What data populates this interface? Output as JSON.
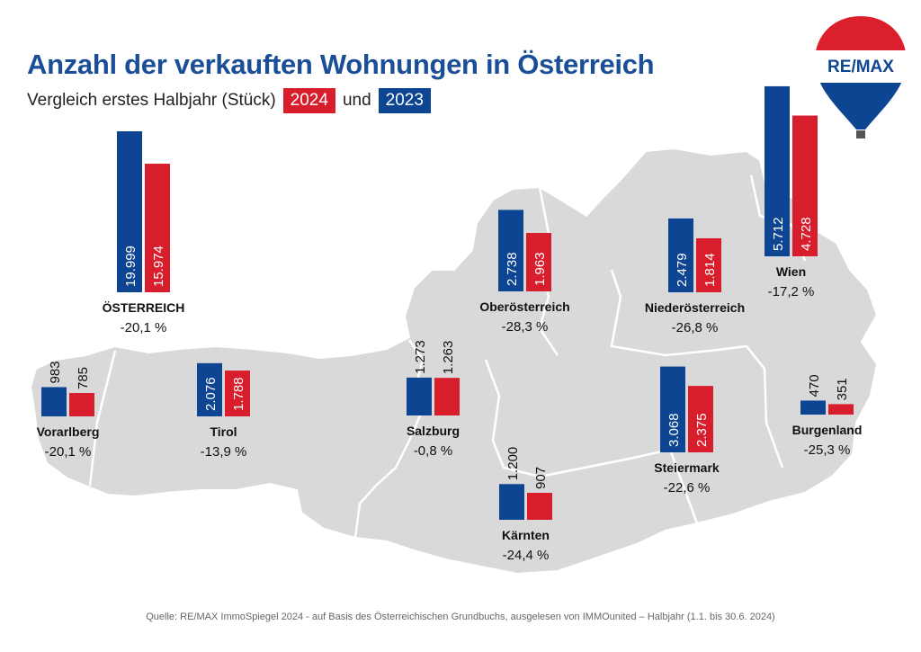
{
  "header": {
    "title": "Anzahl der verkauften Wohnungen in Österreich",
    "subtitle_prefix": "Vergleich erstes Halbjahr (Stück)",
    "year_new": "2024",
    "connector": "und",
    "year_old": "2023"
  },
  "logo": {
    "brand": "RE/MAX"
  },
  "footer": {
    "source": "Quelle: RE/MAX ImmoSpiegel 2024 - auf Basis des Österreichischen Grundbuchs, ausgelesen von IMMOunited – Halbjahr (1.1. bis 30.6. 2024)"
  },
  "colors": {
    "y2023": "#0d4593",
    "y2024": "#d81e2c",
    "map": "#d9d9d9",
    "title": "#1a4e96"
  },
  "chart_data": {
    "type": "bar",
    "title": "Anzahl der verkauften Wohnungen in Österreich",
    "subtitle": "Vergleich erstes Halbjahr (Stück)",
    "series": [
      {
        "name": "2023",
        "color": "#0d4593"
      },
      {
        "name": "2024",
        "color": "#d81e2c"
      }
    ],
    "regions": [
      {
        "key": "oesterreich",
        "name": "ÖSTERREICH",
        "v2023": 19999,
        "v2024": 15974,
        "label2023": "19.999",
        "label2024": "15.974",
        "change": "-20,1 %",
        "labels_inside": true
      },
      {
        "key": "vorarlberg",
        "name": "Vorarlberg",
        "v2023": 983,
        "v2024": 785,
        "label2023": "983",
        "label2024": "785",
        "change": "-20,1 %",
        "labels_inside": false
      },
      {
        "key": "tirol",
        "name": "Tirol",
        "v2023": 2076,
        "v2024": 1788,
        "label2023": "2.076",
        "label2024": "1.788",
        "change": "-13,9 %",
        "labels_inside": true
      },
      {
        "key": "salzburg",
        "name": "Salzburg",
        "v2023": 1273,
        "v2024": 1263,
        "label2023": "1.273",
        "label2024": "1.263",
        "change": "-0,8 %",
        "labels_inside": false
      },
      {
        "key": "kaernten",
        "name": "Kärnten",
        "v2023": 1200,
        "v2024": 907,
        "label2023": "1.200",
        "label2024": "907",
        "change": "-24,4 %",
        "labels_inside": false
      },
      {
        "key": "oberoesterreich",
        "name": "Oberösterreich",
        "v2023": 2738,
        "v2024": 1963,
        "label2023": "2.738",
        "label2024": "1.963",
        "change": "-28,3 %",
        "labels_inside": true
      },
      {
        "key": "niederoesterreich",
        "name": "Niederösterreich",
        "v2023": 2479,
        "v2024": 1814,
        "label2023": "2.479",
        "label2024": "1.814",
        "change": "-26,8 %",
        "labels_inside": true
      },
      {
        "key": "wien",
        "name": "Wien",
        "v2023": 5712,
        "v2024": 4728,
        "label2023": "5.712",
        "label2024": "4.728",
        "change": "-17,2 %",
        "labels_inside": true
      },
      {
        "key": "steiermark",
        "name": "Steiermark",
        "v2023": 3068,
        "v2024": 2375,
        "label2023": "3.068",
        "label2024": "2.375",
        "change": "-22,6 %",
        "labels_inside": true
      },
      {
        "key": "burgenland",
        "name": "Burgenland",
        "v2023": 470,
        "v2024": 351,
        "label2023": "470",
        "label2024": "351",
        "change": "-25,3 %",
        "labels_inside": false
      }
    ]
  }
}
